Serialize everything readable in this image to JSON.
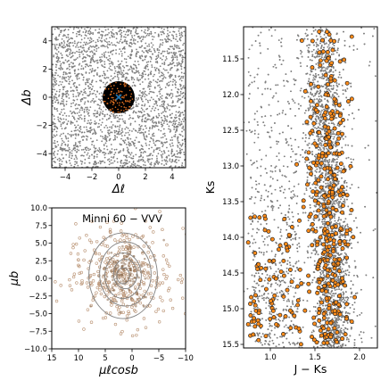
{
  "chart_data": [
    {
      "type": "scatter",
      "title": "",
      "xlabel": "Δℓ",
      "ylabel": "Δb",
      "xlim": [
        -5,
        5
      ],
      "ylim": [
        -5,
        5
      ],
      "xticks": [
        -4,
        -2,
        0,
        2,
        4
      ],
      "yticks": [
        -4,
        -2,
        0,
        2,
        4
      ],
      "xtick_labels": [
        "−4",
        "−2",
        "0",
        "2",
        "4"
      ],
      "ytick_labels": [
        "−4",
        "−2",
        "0",
        "2",
        "4"
      ],
      "grid": false,
      "series": [
        {
          "role": "field",
          "color": "#808080",
          "count": 2600,
          "x_range": [
            -5,
            5
          ],
          "y_range": [
            -5,
            5
          ]
        },
        {
          "role": "cluster_region",
          "shape": "circle",
          "center": [
            0,
            0
          ],
          "radius": 1.2,
          "color": "#000000"
        },
        {
          "role": "members",
          "color": "#e07020",
          "count": 90,
          "center": [
            0,
            0
          ],
          "radius": 1.15
        },
        {
          "role": "center_marker",
          "color": "#1f77b4",
          "center": [
            0,
            0
          ],
          "marker": "x"
        }
      ]
    },
    {
      "type": "scatter",
      "title": "Minni 60 − VVV",
      "xlabel": "μℓcosb",
      "ylabel": "μb",
      "xlim": [
        15,
        -10
      ],
      "ylim": [
        -10,
        10
      ],
      "xticks": [
        15,
        10,
        5,
        0,
        -5,
        -10
      ],
      "yticks": [
        -10.0,
        -7.5,
        -5.0,
        -2.5,
        0.0,
        2.5,
        5.0,
        7.5,
        10.0
      ],
      "xtick_labels": [
        "15",
        "10",
        "5",
        "0",
        "−5",
        "−10"
      ],
      "ytick_labels": [
        "−10.0",
        "−7.5",
        "−5.0",
        "−2.5",
        "0.0",
        "2.5",
        "5.0",
        "7.5",
        "10.0"
      ],
      "grid": false,
      "series": [
        {
          "role": "field",
          "color": "#b89070",
          "count": 360,
          "center": [
            1.5,
            0.5
          ],
          "spread": [
            4.5,
            3.6
          ]
        },
        {
          "role": "members",
          "color": "#8a6a4c",
          "count": 150,
          "center": [
            1.5,
            0.8
          ],
          "spread": [
            2.2,
            2.2
          ]
        },
        {
          "role": "density_contours",
          "color": "#808080",
          "center": [
            1.5,
            0.5
          ],
          "levels_radius": [
            1.2,
            2.2,
            3.4,
            4.8,
            6.4
          ]
        }
      ]
    },
    {
      "type": "scatter",
      "title": "",
      "xlabel": "J − Ks",
      "ylabel": "Ks",
      "xlim": [
        0.7,
        2.2
      ],
      "ylim": [
        15.55,
        11.05
      ],
      "xticks": [
        1.0,
        1.5,
        2.0
      ],
      "yticks": [
        11.5,
        12.0,
        12.5,
        13.0,
        13.5,
        14.0,
        14.5,
        15.0,
        15.5
      ],
      "xtick_labels": [
        "1.0",
        "1.5",
        "2.0"
      ],
      "ytick_labels": [
        "11.5",
        "12.0",
        "12.5",
        "13.0",
        "13.5",
        "14.0",
        "14.5",
        "15.0",
        "15.5"
      ],
      "grid": false,
      "series": [
        {
          "role": "field",
          "color": "#808080",
          "count": 9000
        },
        {
          "role": "members",
          "color": "#ff8c1a",
          "edgecolor": "#222222",
          "count": 430
        }
      ]
    }
  ]
}
